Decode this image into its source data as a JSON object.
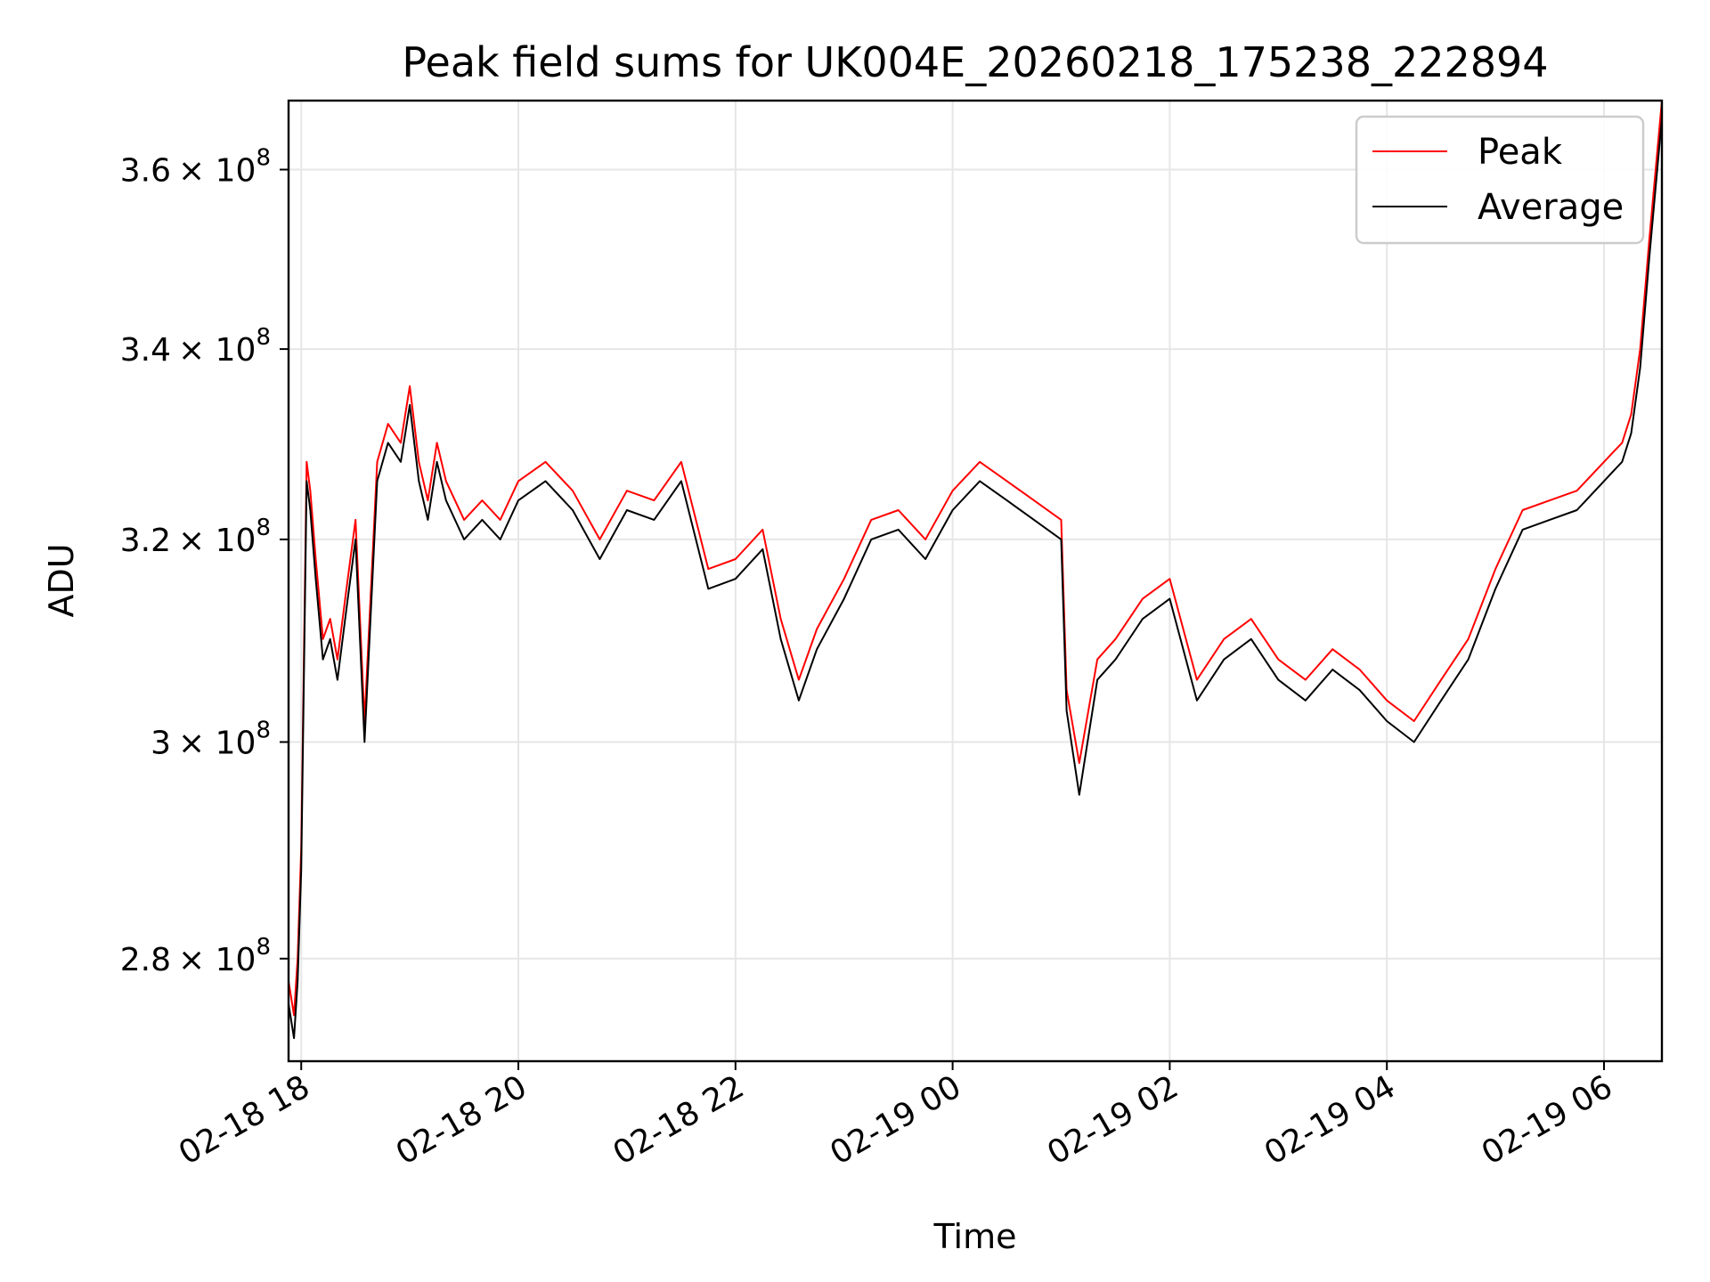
{
  "chart_data": {
    "type": "line",
    "title": "Peak field sums for UK004E_20260218_175238_222894",
    "xlabel": "Time",
    "ylabel": "ADU",
    "yscale": "log",
    "grid": true,
    "legend_position": "top-right",
    "xlim": [
      "2026-02-18 17:53",
      "2026-02-19 06:32"
    ],
    "ylim": [
      271000000.0,
      368000000.0
    ],
    "x_ticks": [
      "02-18 18",
      "02-18 20",
      "02-18 22",
      "02-19 00",
      "02-19 02",
      "02-19 04",
      "02-19 06"
    ],
    "y_ticks": [
      {
        "value": 280000000.0,
        "mantissa": "2.8",
        "base": "× 10",
        "exp": "8"
      },
      {
        "value": 300000000.0,
        "mantissa": "3",
        "base": "× 10",
        "exp": "8"
      },
      {
        "value": 320000000.0,
        "mantissa": "3.2",
        "base": "× 10",
        "exp": "8"
      },
      {
        "value": 340000000.0,
        "mantissa": "3.4",
        "base": "× 10",
        "exp": "8"
      },
      {
        "value": 360000000.0,
        "mantissa": "3.6",
        "base": "× 10",
        "exp": "8"
      }
    ],
    "x": [
      "2026-02-18 17:53",
      "2026-02-18 17:56",
      "2026-02-18 17:58",
      "2026-02-18 18:00",
      "2026-02-18 18:03",
      "2026-02-18 18:05",
      "2026-02-18 18:08",
      "2026-02-18 18:12",
      "2026-02-18 18:16",
      "2026-02-18 18:20",
      "2026-02-18 18:25",
      "2026-02-18 18:30",
      "2026-02-18 18:35",
      "2026-02-18 18:42",
      "2026-02-18 18:48",
      "2026-02-18 18:55",
      "2026-02-18 19:00",
      "2026-02-18 19:05",
      "2026-02-18 19:10",
      "2026-02-18 19:15",
      "2026-02-18 19:20",
      "2026-02-18 19:30",
      "2026-02-18 19:40",
      "2026-02-18 19:50",
      "2026-02-18 20:00",
      "2026-02-18 20:15",
      "2026-02-18 20:30",
      "2026-02-18 20:45",
      "2026-02-18 21:00",
      "2026-02-18 21:15",
      "2026-02-18 21:30",
      "2026-02-18 21:45",
      "2026-02-18 22:00",
      "2026-02-18 22:15",
      "2026-02-18 22:25",
      "2026-02-18 22:35",
      "2026-02-18 22:45",
      "2026-02-18 23:00",
      "2026-02-18 23:15",
      "2026-02-18 23:30",
      "2026-02-18 23:45",
      "2026-02-19 00:00",
      "2026-02-19 00:15",
      "2026-02-19 00:30",
      "2026-02-19 00:45",
      "2026-02-19 01:00",
      "2026-02-19 01:03",
      "2026-02-19 01:10",
      "2026-02-19 01:20",
      "2026-02-19 01:30",
      "2026-02-19 01:45",
      "2026-02-19 02:00",
      "2026-02-19 02:15",
      "2026-02-19 02:30",
      "2026-02-19 02:45",
      "2026-02-19 03:00",
      "2026-02-19 03:15",
      "2026-02-19 03:30",
      "2026-02-19 03:45",
      "2026-02-19 04:00",
      "2026-02-19 04:15",
      "2026-02-19 04:30",
      "2026-02-19 04:45",
      "2026-02-19 05:00",
      "2026-02-19 05:15",
      "2026-02-19 05:30",
      "2026-02-19 05:45",
      "2026-02-19 06:00",
      "2026-02-19 06:05",
      "2026-02-19 06:10",
      "2026-02-19 06:15",
      "2026-02-19 06:20",
      "2026-02-19 06:25",
      "2026-02-19 06:32"
    ],
    "series": [
      {
        "name": "Peak",
        "color": "#ff0000",
        "values": [
          278000000.0,
          275000000.0,
          280000000.0,
          290000000.0,
          328000000.0,
          325000000.0,
          318000000.0,
          310000000.0,
          312000000.0,
          308000000.0,
          315000000.0,
          322000000.0,
          302000000.0,
          328000000.0,
          332000000.0,
          330000000.0,
          336000000.0,
          328000000.0,
          324000000.0,
          330000000.0,
          326000000.0,
          322000000.0,
          324000000.0,
          322000000.0,
          326000000.0,
          328000000.0,
          325000000.0,
          320000000.0,
          325000000.0,
          324000000.0,
          328000000.0,
          317000000.0,
          318000000.0,
          321000000.0,
          312000000.0,
          306000000.0,
          311000000.0,
          316000000.0,
          322000000.0,
          323000000.0,
          320000000.0,
          325000000.0,
          328000000.0,
          326000000.0,
          324000000.0,
          322000000.0,
          305000000.0,
          298000000.0,
          308000000.0,
          310000000.0,
          314000000.0,
          316000000.0,
          306000000.0,
          310000000.0,
          312000000.0,
          308000000.0,
          306000000.0,
          309000000.0,
          307000000.0,
          304000000.0,
          302000000.0,
          306000000.0,
          310000000.0,
          317000000.0,
          323000000.0,
          324000000.0,
          325000000.0,
          328000000.0,
          329000000.0,
          330000000.0,
          333000000.0,
          340000000.0,
          352000000.0,
          368000000.0
        ]
      },
      {
        "name": "Average",
        "color": "#000000",
        "values": [
          276000000.0,
          273000000.0,
          278000000.0,
          288000000.0,
          326000000.0,
          323000000.0,
          316000000.0,
          308000000.0,
          310000000.0,
          306000000.0,
          313000000.0,
          320000000.0,
          300000000.0,
          326000000.0,
          330000000.0,
          328000000.0,
          334000000.0,
          326000000.0,
          322000000.0,
          328000000.0,
          324000000.0,
          320000000.0,
          322000000.0,
          320000000.0,
          324000000.0,
          326000000.0,
          323000000.0,
          318000000.0,
          323000000.0,
          322000000.0,
          326000000.0,
          315000000.0,
          316000000.0,
          319000000.0,
          310000000.0,
          304000000.0,
          309000000.0,
          314000000.0,
          320000000.0,
          321000000.0,
          318000000.0,
          323000000.0,
          326000000.0,
          324000000.0,
          322000000.0,
          320000000.0,
          303000000.0,
          295000000.0,
          306000000.0,
          308000000.0,
          312000000.0,
          314000000.0,
          304000000.0,
          308000000.0,
          310000000.0,
          306000000.0,
          304000000.0,
          307000000.0,
          305000000.0,
          302000000.0,
          300000000.0,
          304000000.0,
          308000000.0,
          315000000.0,
          321000000.0,
          322000000.0,
          323000000.0,
          326000000.0,
          327000000.0,
          328000000.0,
          331000000.0,
          338000000.0,
          350000000.0,
          366000000.0
        ]
      }
    ]
  }
}
